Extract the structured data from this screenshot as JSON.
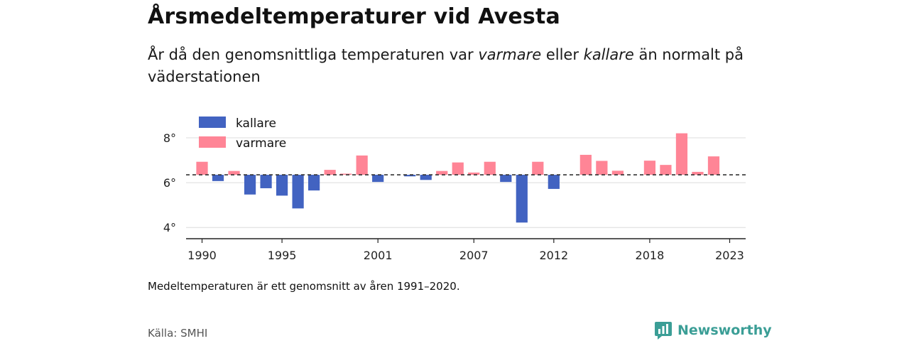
{
  "header": {
    "title": "Årsmedeltemperaturer vid Avesta",
    "subtitle_part1": "År då den genomsnittliga temperaturen var ",
    "subtitle_em1": "varmare",
    "subtitle_part2": " eller ",
    "subtitle_em2": "kallare",
    "subtitle_part3": " än normalt på väderstationen"
  },
  "footer": {
    "note": "Medeltemperaturen är ett genomsnitt av åren 1991–2020.",
    "source": "Källa: SMHI",
    "brand": "Newsworthy"
  },
  "colors": {
    "kallare": "#4263c1",
    "varmare": "#ff8596",
    "brand": "#3b9e96"
  },
  "chart_data": {
    "type": "bar",
    "title": "Årsmedeltemperaturer vid Avesta",
    "baseline": 6.35,
    "ylim": [
      3.5,
      8.6
    ],
    "yticks": [
      4,
      6,
      8
    ],
    "ytick_labels": [
      "4°",
      "6°",
      "8°"
    ],
    "xlim": [
      1989,
      2024
    ],
    "xticks": [
      1990,
      1995,
      2001,
      2007,
      2012,
      2018,
      2023
    ],
    "xtick_labels": [
      "1990",
      "1995",
      "2001",
      "2007",
      "2012",
      "2018",
      "2023"
    ],
    "grid": true,
    "legend_position": "top-left",
    "legend": [
      {
        "key": "kallare",
        "label": "kallare"
      },
      {
        "key": "varmare",
        "label": "varmare"
      }
    ],
    "years": [
      1990,
      1991,
      1992,
      1993,
      1994,
      1995,
      1996,
      1997,
      1998,
      1999,
      2000,
      2001,
      2002,
      2003,
      2004,
      2005,
      2006,
      2007,
      2008,
      2009,
      2010,
      2011,
      2012,
      2013,
      2014,
      2015,
      2016,
      2017,
      2018,
      2019,
      2020,
      2021,
      2022,
      2023
    ],
    "values": [
      6.93,
      6.07,
      6.52,
      5.47,
      5.75,
      5.42,
      4.85,
      5.65,
      6.57,
      6.4,
      7.21,
      6.03,
      null,
      6.28,
      6.12,
      6.52,
      6.9,
      6.45,
      6.93,
      6.03,
      4.22,
      6.93,
      5.72,
      null,
      7.24,
      6.97,
      6.53,
      null,
      6.98,
      6.79,
      8.2,
      6.48,
      7.17,
      null
    ]
  }
}
